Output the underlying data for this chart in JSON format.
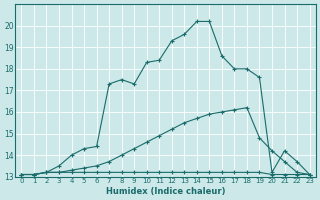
{
  "xlabel": "Humidex (Indice chaleur)",
  "xlim": [
    -0.5,
    23.5
  ],
  "ylim": [
    13,
    21
  ],
  "yticks": [
    13,
    14,
    15,
    16,
    17,
    18,
    19,
    20
  ],
  "xticks": [
    0,
    1,
    2,
    3,
    4,
    5,
    6,
    7,
    8,
    9,
    10,
    11,
    12,
    13,
    14,
    15,
    16,
    17,
    18,
    19,
    20,
    21,
    22,
    23
  ],
  "bg_color": "#cce8e8",
  "grid_color": "#aacccc",
  "line_color": "#1a6b6b",
  "lines": [
    {
      "x": [
        0,
        1,
        2,
        3,
        4,
        5,
        6,
        7,
        8,
        9,
        10,
        11,
        12,
        13,
        14,
        15,
        16,
        17,
        18,
        19,
        20,
        21,
        22,
        23
      ],
      "y": [
        13.1,
        13.1,
        13.2,
        13.2,
        13.2,
        13.2,
        13.2,
        13.2,
        13.2,
        13.2,
        13.2,
        13.2,
        13.2,
        13.2,
        13.2,
        13.2,
        13.2,
        13.2,
        13.2,
        13.2,
        13.1,
        13.1,
        13.1,
        13.1
      ]
    },
    {
      "x": [
        0,
        1,
        2,
        3,
        4,
        5,
        6,
        7,
        8,
        9,
        10,
        11,
        12,
        13,
        14,
        15,
        16,
        17,
        18,
        19,
        20,
        21,
        22,
        23
      ],
      "y": [
        13.1,
        13.1,
        13.2,
        13.2,
        13.3,
        13.4,
        13.5,
        13.7,
        14.0,
        14.3,
        14.6,
        14.9,
        15.2,
        15.5,
        15.7,
        15.9,
        16.0,
        16.1,
        16.2,
        14.8,
        14.2,
        13.7,
        13.2,
        13.1
      ]
    },
    {
      "x": [
        0,
        1,
        2,
        3,
        4,
        5,
        6,
        7,
        8,
        9,
        10,
        11,
        12,
        13,
        14,
        15,
        16,
        17,
        18,
        19,
        20,
        21,
        22,
        23
      ],
      "y": [
        13.1,
        13.1,
        13.2,
        13.5,
        14.0,
        14.3,
        14.4,
        17.3,
        17.5,
        17.3,
        18.3,
        18.4,
        19.3,
        19.6,
        20.2,
        20.2,
        18.6,
        18.0,
        18.0,
        17.6,
        13.2,
        14.2,
        13.7,
        13.1
      ]
    }
  ]
}
